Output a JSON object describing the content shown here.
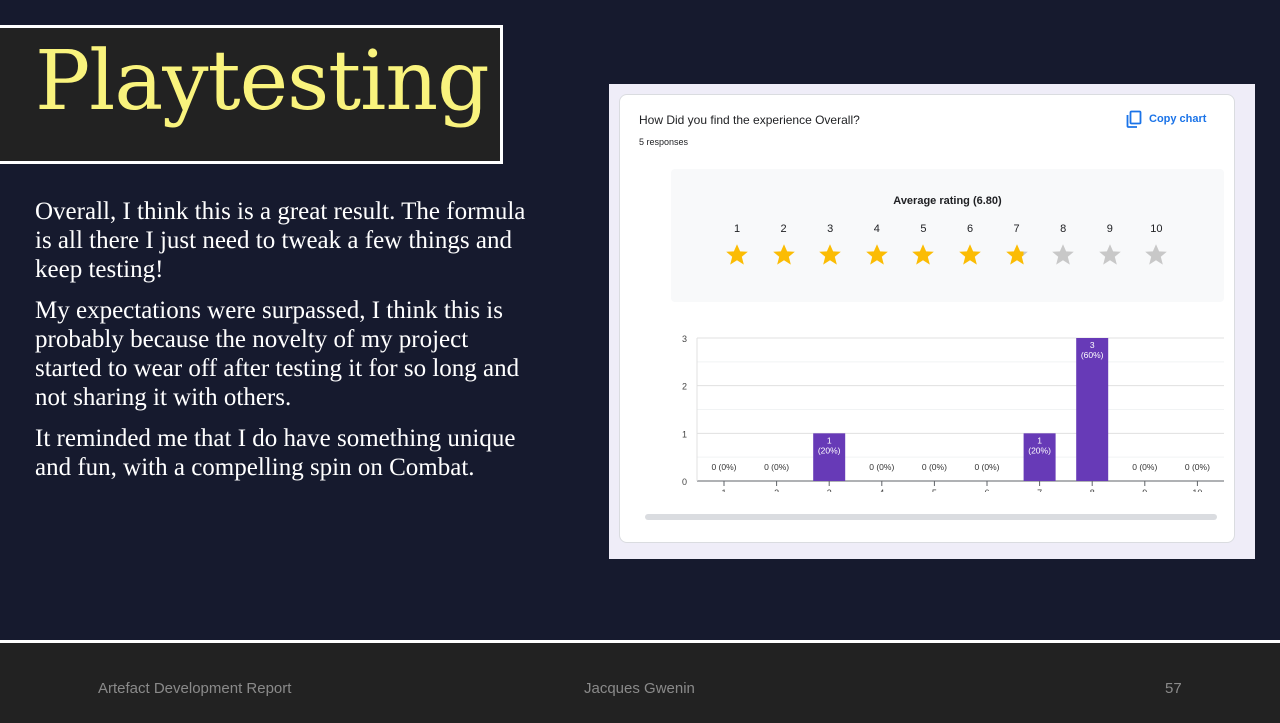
{
  "slide": {
    "title": "Playtesting",
    "paragraphs": [
      "Overall, I think this is a great result. The formula is all there I just need to tweak a few things and keep testing!",
      "My expectations were surpassed, I think this is probably because the novelty of my project started to wear off after testing it for so long and not sharing it with others.",
      "It reminded me that I do have something unique and fun, with a compelling spin on Combat."
    ]
  },
  "form": {
    "question": "How Did you find the experience Overall?",
    "responses": "5 responses",
    "copy_label": "Copy chart",
    "copy_icon": "copy-icon",
    "average_label": "Average rating (6.80)",
    "rating_value": 6.8,
    "star_labels": [
      "1",
      "2",
      "3",
      "4",
      "5",
      "6",
      "7",
      "8",
      "9",
      "10"
    ],
    "colors": {
      "bar": "#673ab7",
      "star_filled": "#fbbc04",
      "star_empty": "#c8c8c8",
      "link": "#1a73e8"
    }
  },
  "chart_data": {
    "type": "bar",
    "categories": [
      "1",
      "2",
      "3",
      "4",
      "5",
      "6",
      "7",
      "8",
      "9",
      "10"
    ],
    "values": [
      0,
      0,
      1,
      0,
      0,
      0,
      1,
      3,
      0,
      0
    ],
    "data_labels": [
      "0 (0%)",
      "0 (0%)",
      "1 (20%)",
      "0 (0%)",
      "0 (0%)",
      "0 (0%)",
      "1 (20%)",
      "3 (60%)",
      "0 (0%)",
      "0 (0%)"
    ],
    "yticks": [
      0,
      1,
      2,
      3
    ],
    "ylim": [
      0,
      3
    ],
    "grid": true
  },
  "footer": {
    "left": "Artefact Development Report",
    "center": "Jacques Gwenin",
    "right": "57"
  }
}
